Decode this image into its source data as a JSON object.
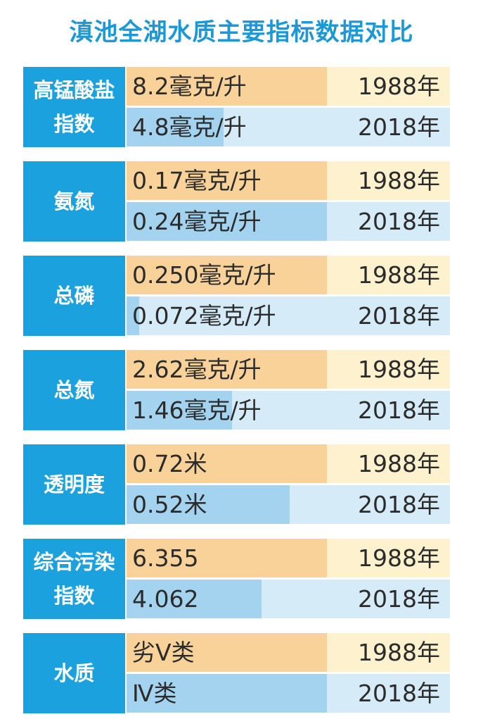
{
  "title": "滇池全湖水质主要指标数据对比",
  "groups": [
    {
      "label": "高锰酸盐指数",
      "rows": [
        {
          "value": "8.2毫克/升",
          "year": "1988年"
        },
        {
          "value": "4.8毫克/升",
          "year": "2018年"
        }
      ]
    },
    {
      "label": "氨氮",
      "rows": [
        {
          "value": "0.17毫克/升",
          "year": "1988年"
        },
        {
          "value": "0.24毫克/升",
          "year": "2018年"
        }
      ]
    },
    {
      "label": "总磷",
      "rows": [
        {
          "value": "0.250毫克/升",
          "year": "1988年"
        },
        {
          "value": "0.072毫克/升",
          "year": "2018年"
        }
      ]
    },
    {
      "label": "总氮",
      "rows": [
        {
          "value": "2.62毫克/升",
          "year": "1988年"
        },
        {
          "value": "1.46毫克/升",
          "year": "2018年"
        }
      ]
    },
    {
      "label": "透明度",
      "rows": [
        {
          "value": "0.72米",
          "year": "1988年"
        },
        {
          "value": "0.52米",
          "year": "2018年"
        }
      ]
    },
    {
      "label": "综合污染指数",
      "rows": [
        {
          "value": "6.355",
          "year": "1988年"
        },
        {
          "value": "4.062",
          "year": "2018年"
        }
      ]
    },
    {
      "label": "水质",
      "rows": [
        {
          "value": "劣Ⅴ类",
          "year": "1988年"
        },
        {
          "value": "Ⅳ类",
          "year": "2018年"
        }
      ]
    }
  ]
}
